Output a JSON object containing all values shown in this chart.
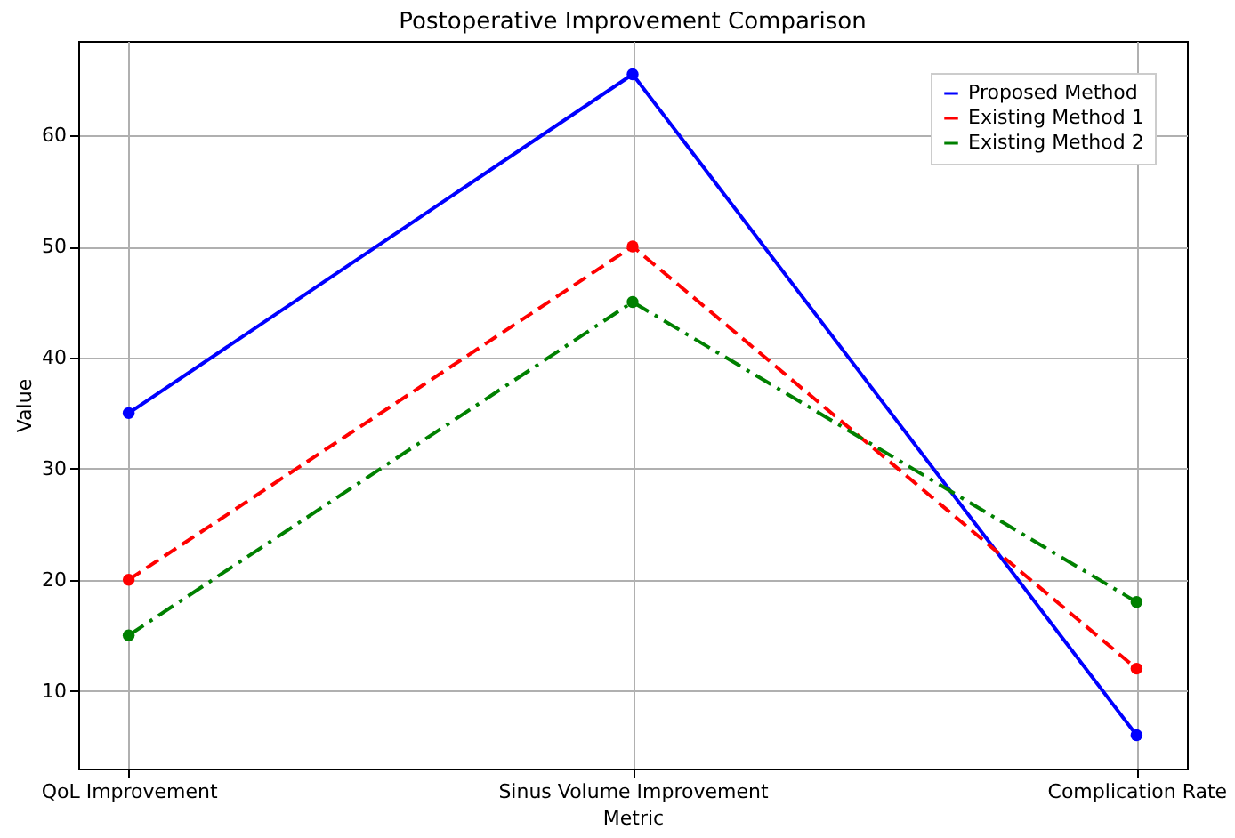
{
  "chart_data": {
    "type": "line",
    "title": "Postoperative Improvement Comparison",
    "xlabel": "Metric",
    "ylabel": "Value",
    "categories": [
      "QoL Improvement",
      "Sinus Volume Improvement",
      "Complication Rate"
    ],
    "series": [
      {
        "name": "Proposed Method",
        "color": "#0000ff",
        "values": [
          35,
          65.5,
          6
        ],
        "line_style": "solid"
      },
      {
        "name": "Existing Method 1",
        "color": "#ff0000",
        "values": [
          20,
          50,
          12
        ],
        "line_style": "dashed"
      },
      {
        "name": "Existing Method 2",
        "color": "#008000",
        "values": [
          15,
          45,
          18
        ],
        "line_style": "dashdot"
      }
    ],
    "ylim": [
      3.0,
      68.5
    ],
    "yticks": [
      10,
      20,
      30,
      40,
      50,
      60
    ],
    "grid": true,
    "legend": "top right",
    "marker": "circle"
  }
}
